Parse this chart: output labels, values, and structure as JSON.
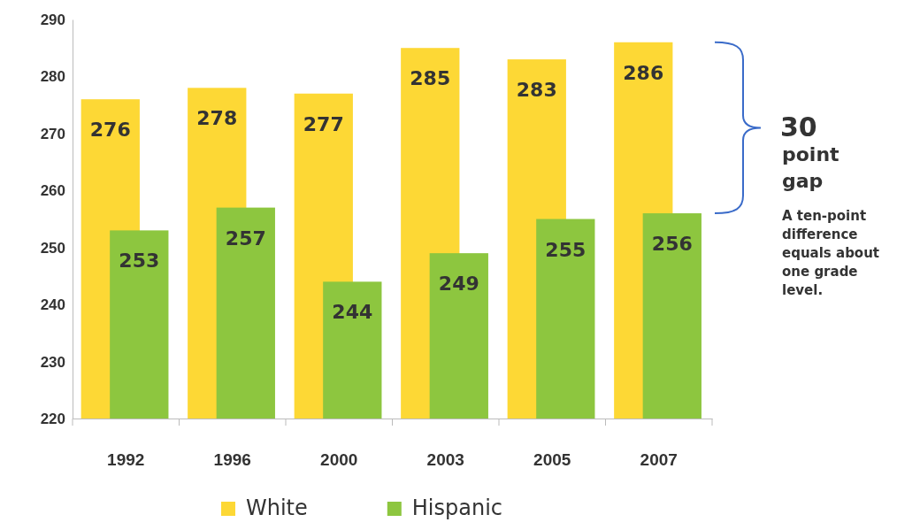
{
  "chart_data": {
    "type": "bar",
    "categories": [
      "1992",
      "1996",
      "2000",
      "2003",
      "2005",
      "2007"
    ],
    "series": [
      {
        "name": "White",
        "color": "#fdd835",
        "values": [
          276,
          278,
          277,
          285,
          283,
          286
        ]
      },
      {
        "name": "Hispanic",
        "color": "#8dc63f",
        "values": [
          253,
          257,
          244,
          249,
          255,
          256
        ]
      }
    ],
    "ylim": [
      220,
      290
    ],
    "yticks": [
      220,
      230,
      240,
      250,
      260,
      270,
      280,
      290
    ],
    "data_labels": true,
    "legend": "bottom",
    "grid": false,
    "annotations": [
      "30",
      "point gap",
      "A ten-point difference equals about one grade level."
    ]
  }
}
